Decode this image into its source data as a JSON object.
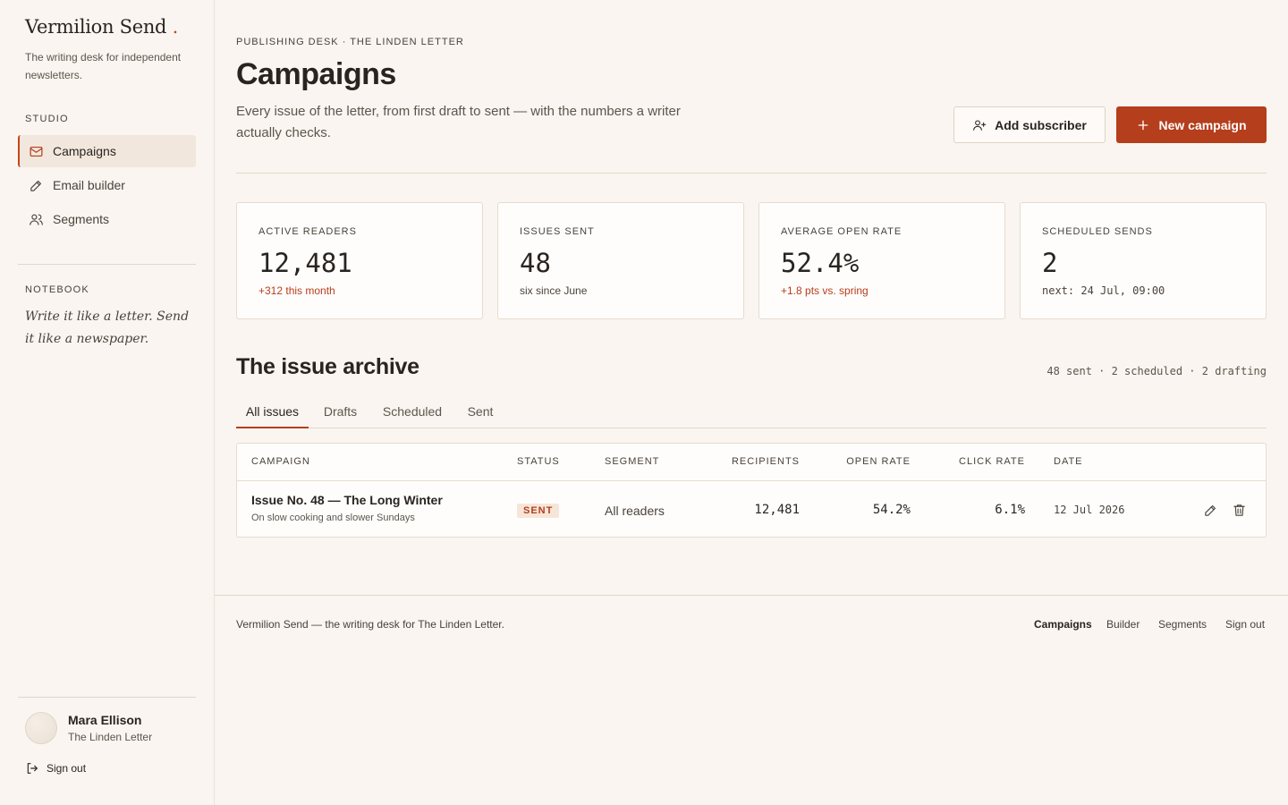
{
  "brand": {
    "name": "Vermilion Send",
    "dot": ".",
    "tagline": "The writing desk for independent newsletters."
  },
  "sidebar": {
    "studio_label": "STUDIO",
    "items": [
      {
        "label": "Campaigns",
        "icon": "mail-icon",
        "active": true
      },
      {
        "label": "Email builder",
        "icon": "pen-icon",
        "active": false
      },
      {
        "label": "Segments",
        "icon": "users-icon",
        "active": false
      }
    ],
    "notebook_label": "NOTEBOOK",
    "notebook_quote": "Write it like a letter. Send it like a newspaper.",
    "user": {
      "name": "Mara Ellison",
      "publication": "The Linden Letter"
    },
    "sign_out": "Sign out"
  },
  "header": {
    "eyebrow": "PUBLISHING DESK · THE LINDEN LETTER",
    "title": "Campaigns",
    "description": "Every issue of the letter, from first draft to sent — with the numbers a writer actually checks.",
    "add_subscriber": "Add subscriber",
    "new_campaign": "New campaign"
  },
  "stats": [
    {
      "label": "ACTIVE READERS",
      "value": "12,481",
      "note": "+312 this month"
    },
    {
      "label": "ISSUES SENT",
      "value": "48",
      "note": "six since June"
    },
    {
      "label": "AVERAGE OPEN RATE",
      "value": "52.4%",
      "note": "+1.8 pts vs. spring"
    },
    {
      "label": "SCHEDULED SENDS",
      "value": "2",
      "note": "next: 24 Jul, 09:00"
    }
  ],
  "archive": {
    "title": "The issue archive",
    "summary": "48 sent · 2 scheduled · 2 drafting",
    "tabs": [
      "All issues",
      "Drafts",
      "Scheduled",
      "Sent"
    ],
    "active_tab": "All issues",
    "columns": [
      "CAMPAIGN",
      "STATUS",
      "SEGMENT",
      "RECIPIENTS",
      "OPEN RATE",
      "CLICK RATE",
      "DATE"
    ],
    "rows": [
      {
        "name": "Issue No. 48 — The Long Winter",
        "subtitle": "On slow cooking and slower Sundays",
        "status": "SENT",
        "segment": "All readers",
        "recipients": "12,481",
        "open_rate": "54.2%",
        "click_rate": "6.1%",
        "date": "12 Jul 2026"
      }
    ]
  },
  "footer": {
    "text": "Vermilion Send — the writing desk for The Linden Letter.",
    "links": [
      "Campaigns",
      "Builder",
      "Segments",
      "Sign out"
    ]
  },
  "colors": {
    "accent": "#b53e1c",
    "background": "#faf5f0",
    "card": "#fffdfb"
  }
}
